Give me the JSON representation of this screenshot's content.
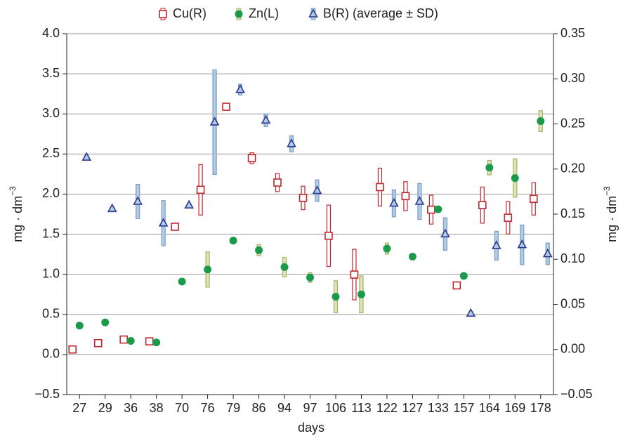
{
  "chart_data": {
    "type": "errorbar",
    "legend_position": "top",
    "x_label": "days",
    "y_label": {
      "text": "mg · dm",
      "sup": "−3"
    },
    "y2_label": {
      "text": "mg · dm",
      "sup": "−3"
    },
    "categories": [
      "27",
      "29",
      "36",
      "38",
      "70",
      "76",
      "79",
      "86",
      "94",
      "97",
      "106",
      "113",
      "122",
      "127",
      "133",
      "157",
      "164",
      "169",
      "178"
    ],
    "ylim": [
      -0.5,
      4.0
    ],
    "yticks": [
      {
        "value": -0.5,
        "label": "−0.5"
      },
      {
        "value": 0,
        "label": "0.0"
      },
      {
        "value": 0.5,
        "label": "0.5"
      },
      {
        "value": 1,
        "label": "1.0"
      },
      {
        "value": 1.5,
        "label": "1.5"
      },
      {
        "value": 2,
        "label": "2.0"
      },
      {
        "value": 2.5,
        "label": "2.5"
      },
      {
        "value": 3,
        "label": "3.0"
      },
      {
        "value": 3.5,
        "label": "3.5"
      },
      {
        "value": 4,
        "label": "4.0"
      }
    ],
    "y2lim": [
      -0.05,
      0.35
    ],
    "y2ticks": [
      {
        "value": -0.05,
        "label": "−0.05"
      },
      {
        "value": 0,
        "label": "0.00"
      },
      {
        "value": 0.05,
        "label": "0.05"
      },
      {
        "value": 0.1,
        "label": "0.10"
      },
      {
        "value": 0.15,
        "label": "0.15"
      },
      {
        "value": 0.2,
        "label": "0.20"
      },
      {
        "value": 0.25,
        "label": "0.25"
      },
      {
        "value": 0.3,
        "label": "0.30"
      },
      {
        "value": 0.35,
        "label": "0.35"
      }
    ],
    "grid": true,
    "series": [
      {
        "name": "Cu(R)",
        "axis": "y2",
        "marker": "square",
        "color": "#c0262d",
        "bar_fill": "#ffffff",
        "values": [
          0.0,
          0.007,
          0.011,
          0.009,
          0.136,
          0.177,
          0.269,
          0.212,
          0.185,
          0.168,
          0.126,
          0.083,
          0.18,
          0.17,
          0.155,
          0.071,
          0.16,
          0.146,
          0.167
        ],
        "sd": [
          0.002,
          0.002,
          0.002,
          0.002,
          0.002,
          0.028,
          0.002,
          0.006,
          0.01,
          0.013,
          0.034,
          0.028,
          0.021,
          0.016,
          0.016,
          0.002,
          0.02,
          0.018,
          0.018
        ]
      },
      {
        "name": "Zn(L)",
        "axis": "y",
        "marker": "circle",
        "color": "#1a9a4a",
        "bar_fill": "#dde6b4",
        "bar_stroke": "#a8ae6a",
        "values": [
          0.36,
          0.4,
          0.17,
          0.15,
          0.91,
          1.06,
          1.42,
          1.3,
          1.09,
          0.96,
          0.72,
          0.75,
          1.32,
          1.22,
          1.81,
          0.98,
          2.33,
          2.2,
          2.91
        ],
        "sd": [
          0.02,
          0.03,
          0.02,
          0.02,
          0.02,
          0.22,
          0.02,
          0.07,
          0.12,
          0.06,
          0.2,
          0.23,
          0.07,
          0.03,
          0.02,
          0.02,
          0.09,
          0.24,
          0.13
        ]
      },
      {
        "name": "B(R) (average ± SD)",
        "axis": "y2",
        "marker": "triangle",
        "color": "#2b3990",
        "bar_fill": "#b3cce6",
        "bar_stroke": "#7a9cc6",
        "values": [
          0.213,
          0.156,
          0.164,
          0.14,
          0.16,
          0.252,
          0.288,
          0.254,
          0.228,
          0.176,
          null,
          null,
          0.162,
          0.164,
          0.128,
          0.04,
          0.115,
          0.116,
          0.106
        ],
        "sd": [
          0.002,
          0.002,
          0.019,
          0.025,
          0.002,
          0.058,
          0.006,
          0.007,
          0.009,
          0.012,
          null,
          null,
          0.015,
          0.02,
          0.018,
          0.002,
          0.016,
          0.022,
          0.012
        ]
      }
    ]
  }
}
